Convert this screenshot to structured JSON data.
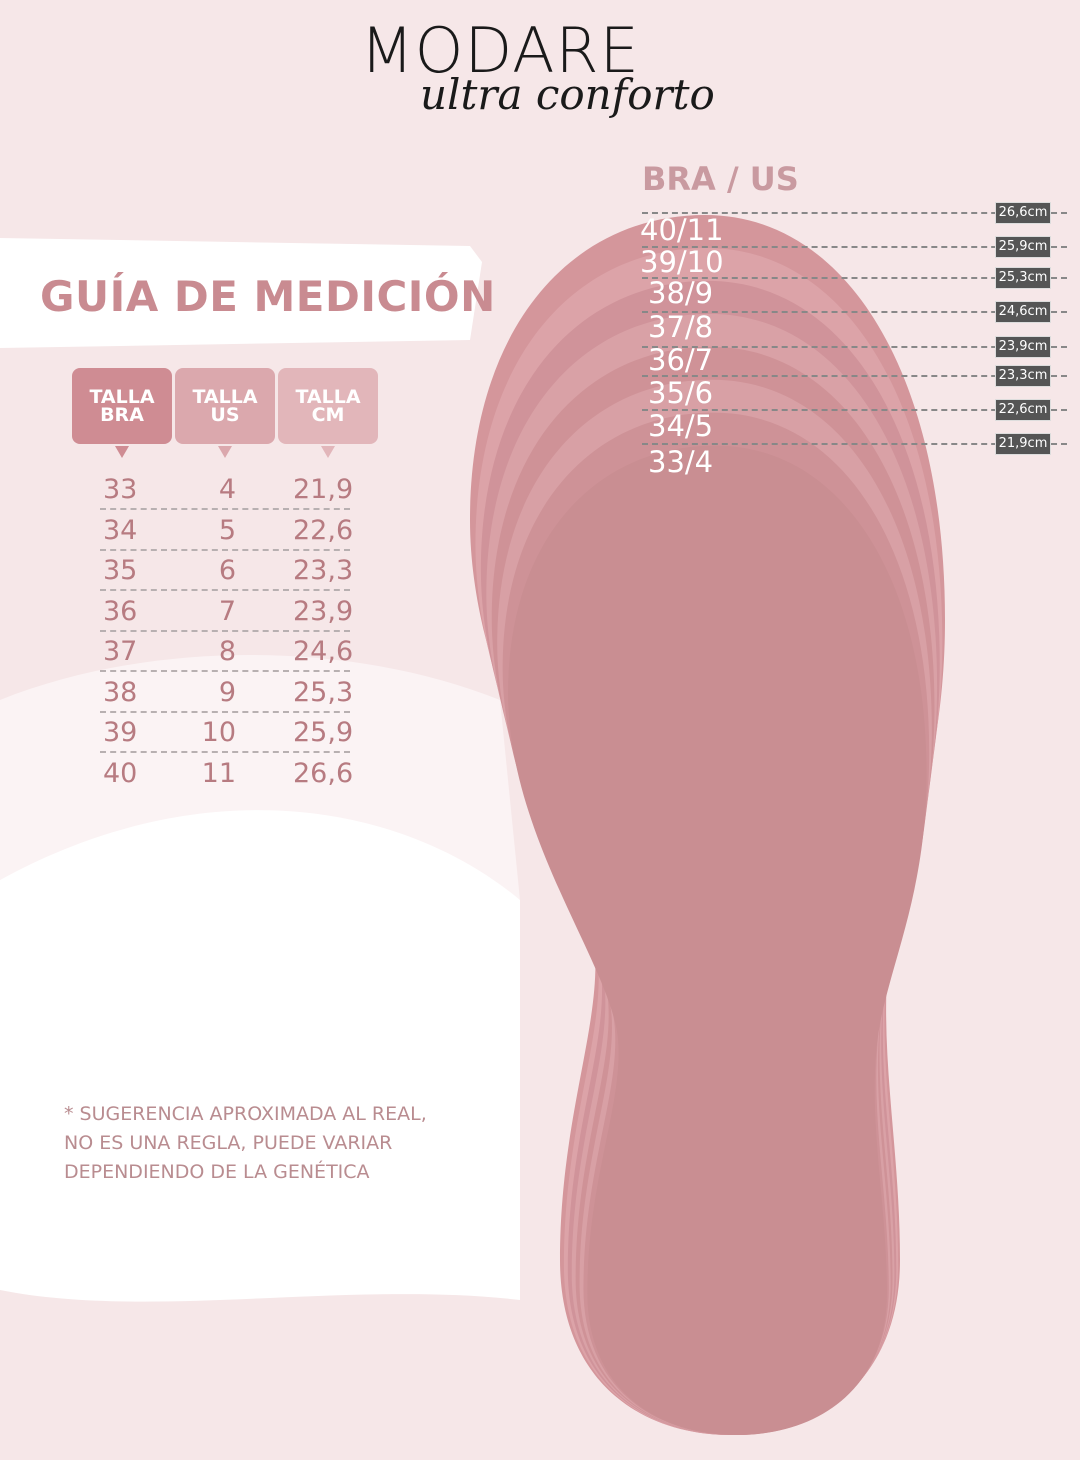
{
  "brand": {
    "name": "MODARE",
    "tagline": "ultra conforto"
  },
  "title": "GUÍA DE MEDICIÓN",
  "table": {
    "headers": [
      {
        "line1": "TALLA",
        "line2": "BRA"
      },
      {
        "line1": "TALLA",
        "line2": "US"
      },
      {
        "line1": "TALLA",
        "line2": "CM"
      }
    ],
    "rows": [
      [
        "33",
        "4",
        "21,9"
      ],
      [
        "34",
        "5",
        "22,6"
      ],
      [
        "35",
        "6",
        "23,3"
      ],
      [
        "36",
        "7",
        "23,9"
      ],
      [
        "37",
        "8",
        "24,6"
      ],
      [
        "38",
        "9",
        "25,3"
      ],
      [
        "39",
        "10",
        "25,9"
      ],
      [
        "40",
        "11",
        "26,6"
      ]
    ]
  },
  "note": [
    "* SUGERENCIA APROXIMADA AL REAL,",
    "NO ES UNA REGLA, PUEDE VARIAR",
    "DEPENDIENDO DE LA GENÉTICA"
  ],
  "diagram": {
    "heading": "BRA / US",
    "sizes": [
      "40/11",
      "39/10",
      "38/9",
      "37/8",
      "36/7",
      "35/6",
      "34/5",
      "33/4"
    ],
    "measures": [
      "26,6cm",
      "25,9cm",
      "25,3cm",
      "24,6cm",
      "23,9cm",
      "23,3cm",
      "22,6cm",
      "21,9cm"
    ]
  },
  "colors": {
    "accent": "#c98b91",
    "header_bra": "#cf8c93",
    "header_us": "#dba8ad",
    "header_cm": "#e2b6ba",
    "sole": "#c98e92",
    "label_bg": "#555555"
  }
}
